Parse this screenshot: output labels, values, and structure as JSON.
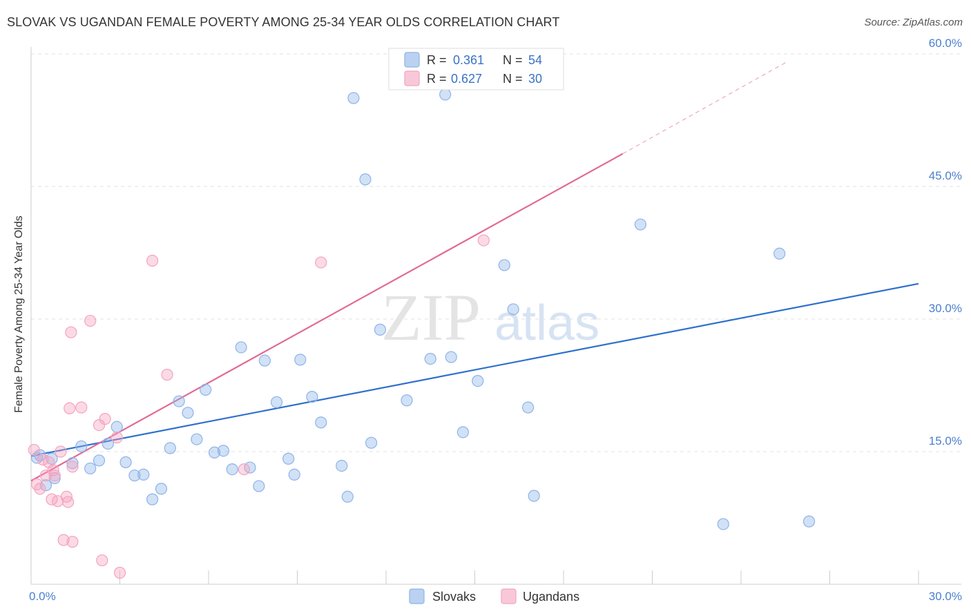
{
  "title": "SLOVAK VS UGANDAN FEMALE POVERTY AMONG 25-34 YEAR OLDS CORRELATION CHART",
  "source": "Source: ZipAtlas.com",
  "watermark": {
    "zip": "ZIP",
    "atlas": "atlas"
  },
  "stats": [
    {
      "r_label": "R =",
      "r_value": "0.361",
      "n_label": "N =",
      "n_value": "54",
      "color": "#8db3e8"
    },
    {
      "r_label": "R =",
      "r_value": "0.627",
      "n_label": "N =",
      "n_value": "30",
      "color": "#f4a3bf"
    }
  ],
  "chart_data": {
    "type": "scatter",
    "title": "SLOVAK VS UGANDAN FEMALE POVERTY AMONG 25-34 YEAR OLDS CORRELATION CHART",
    "xlabel": "",
    "ylabel": "Female Poverty Among 25-34 Year Olds",
    "xlim": [
      0,
      30
    ],
    "ylim": [
      0,
      60
    ],
    "x_tick_labels": [
      "0.0%",
      "30.0%"
    ],
    "y_ticks": [
      15,
      30,
      45,
      60
    ],
    "y_tick_labels": [
      "15.0%",
      "30.0%",
      "45.0%",
      "60.0%"
    ],
    "grid": true,
    "legend_position": "bottom-center",
    "series": [
      {
        "name": "Slovaks",
        "color": "#8db3e8",
        "line_color": "#2e6fce",
        "trend": {
          "x": [
            0,
            30
          ],
          "y": [
            14.5,
            34.0
          ]
        },
        "points": [
          [
            0.2,
            14.3
          ],
          [
            0.5,
            11.2
          ],
          [
            0.7,
            14.2
          ],
          [
            0.8,
            12.0
          ],
          [
            1.4,
            13.7
          ],
          [
            1.7,
            15.6
          ],
          [
            2.0,
            13.1
          ],
          [
            2.3,
            14.0
          ],
          [
            2.6,
            15.9
          ],
          [
            2.9,
            17.8
          ],
          [
            3.2,
            13.8
          ],
          [
            3.5,
            12.3
          ],
          [
            3.8,
            12.4
          ],
          [
            4.1,
            9.6
          ],
          [
            4.4,
            10.8
          ],
          [
            4.7,
            15.4
          ],
          [
            5.0,
            20.7
          ],
          [
            5.3,
            19.4
          ],
          [
            5.6,
            16.4
          ],
          [
            5.9,
            22.0
          ],
          [
            6.2,
            14.9
          ],
          [
            6.5,
            15.1
          ],
          [
            6.8,
            13.0
          ],
          [
            7.1,
            26.8
          ],
          [
            7.4,
            13.2
          ],
          [
            7.7,
            11.1
          ],
          [
            7.9,
            25.3
          ],
          [
            8.3,
            20.6
          ],
          [
            8.7,
            14.2
          ],
          [
            8.9,
            12.4
          ],
          [
            9.1,
            25.4
          ],
          [
            9.5,
            21.2
          ],
          [
            9.8,
            18.3
          ],
          [
            10.5,
            13.4
          ],
          [
            10.7,
            9.9
          ],
          [
            10.9,
            55.0
          ],
          [
            11.3,
            45.8
          ],
          [
            11.5,
            16.0
          ],
          [
            11.8,
            28.8
          ],
          [
            12.7,
            20.8
          ],
          [
            13.5,
            25.5
          ],
          [
            14.0,
            55.4
          ],
          [
            14.2,
            25.7
          ],
          [
            14.6,
            17.2
          ],
          [
            15.1,
            23.0
          ],
          [
            16.0,
            36.1
          ],
          [
            16.3,
            31.1
          ],
          [
            16.8,
            20.0
          ],
          [
            17.0,
            10.0
          ],
          [
            20.6,
            40.7
          ],
          [
            23.4,
            6.8
          ],
          [
            25.3,
            37.4
          ],
          [
            26.3,
            7.1
          ],
          [
            0.3,
            14.6
          ]
        ]
      },
      {
        "name": "Ugandans",
        "color": "#f4a3bf",
        "line_color": "#e26a95",
        "trend": {
          "x": [
            0,
            20
          ],
          "y": [
            11.7,
            48.7
          ]
        },
        "trend_dashed": {
          "x": [
            20,
            25.5
          ],
          "y": [
            48.7,
            59.0
          ]
        },
        "points": [
          [
            0.1,
            15.2
          ],
          [
            0.2,
            11.3
          ],
          [
            0.3,
            10.8
          ],
          [
            0.4,
            14.1
          ],
          [
            0.5,
            12.3
          ],
          [
            0.6,
            13.8
          ],
          [
            0.7,
            9.6
          ],
          [
            0.75,
            12.9
          ],
          [
            0.8,
            12.3
          ],
          [
            0.9,
            9.4
          ],
          [
            1.0,
            15.0
          ],
          [
            1.1,
            5.0
          ],
          [
            1.2,
            9.9
          ],
          [
            1.25,
            9.3
          ],
          [
            1.3,
            19.9
          ],
          [
            1.35,
            28.5
          ],
          [
            1.4,
            13.3
          ],
          [
            1.4,
            4.8
          ],
          [
            1.7,
            20.0
          ],
          [
            2.0,
            29.8
          ],
          [
            2.3,
            18.0
          ],
          [
            2.4,
            2.7
          ],
          [
            2.5,
            18.7
          ],
          [
            2.9,
            16.6
          ],
          [
            3.0,
            1.3
          ],
          [
            4.1,
            36.6
          ],
          [
            4.6,
            23.7
          ],
          [
            7.2,
            13.0
          ],
          [
            9.8,
            36.4
          ],
          [
            15.3,
            38.9
          ]
        ]
      }
    ]
  }
}
